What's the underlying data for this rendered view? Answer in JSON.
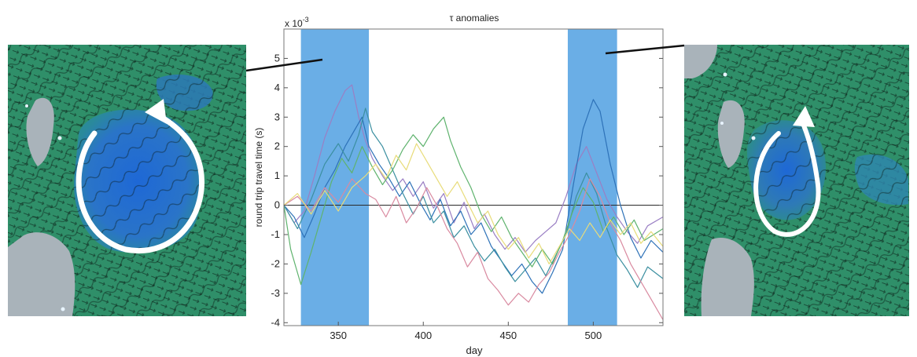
{
  "chart_data": {
    "type": "line",
    "title": "τ anomalies",
    "xlabel": "day",
    "ylabel": "round trip travel time (s)",
    "y_scale_label": "x 10",
    "y_scale_exponent": "-3",
    "xlim": [
      318,
      541
    ],
    "ylim": [
      -4.1,
      6.0
    ],
    "x_ticks": [
      "350",
      "400",
      "450",
      "500"
    ],
    "y_ticks": [
      "5",
      "4",
      "3",
      "2",
      "1",
      "0",
      "-1",
      "-2",
      "-3",
      "-4"
    ],
    "highlight_bands": [
      [
        328,
        368
      ],
      [
        485,
        514
      ]
    ],
    "grid": false,
    "series": [
      {
        "color": "#9a7fc4",
        "points": [
          [
            318,
            0.0
          ],
          [
            324,
            -0.6
          ],
          [
            330,
            -0.2
          ],
          [
            336,
            1.0
          ],
          [
            342,
            2.3
          ],
          [
            348,
            3.2
          ],
          [
            354,
            3.9
          ],
          [
            358,
            4.1
          ],
          [
            362,
            3.0
          ],
          [
            366,
            2.2
          ],
          [
            370,
            1.6
          ],
          [
            376,
            1.0
          ],
          [
            382,
            0.5
          ],
          [
            388,
            0.9
          ],
          [
            394,
            0.3
          ],
          [
            400,
            0.8
          ],
          [
            406,
            -0.1
          ],
          [
            412,
            0.4
          ],
          [
            418,
            -0.6
          ],
          [
            424,
            0.1
          ],
          [
            430,
            -0.8
          ],
          [
            436,
            -0.3
          ],
          [
            442,
            -1.0
          ],
          [
            448,
            -1.5
          ],
          [
            454,
            -1.1
          ],
          [
            460,
            -1.6
          ],
          [
            466,
            -1.2
          ],
          [
            472,
            -0.9
          ],
          [
            478,
            -0.6
          ],
          [
            484,
            0.3
          ],
          [
            490,
            1.4
          ],
          [
            496,
            2.0
          ],
          [
            502,
            1.1
          ],
          [
            508,
            0.2
          ],
          [
            514,
            -0.4
          ],
          [
            520,
            -0.9
          ],
          [
            526,
            -1.3
          ],
          [
            532,
            -0.7
          ],
          [
            541,
            -0.4
          ]
        ]
      },
      {
        "color": "#2e72b8",
        "points": [
          [
            318,
            0.0
          ],
          [
            324,
            -0.4
          ],
          [
            330,
            -1.1
          ],
          [
            336,
            -0.3
          ],
          [
            342,
            0.6
          ],
          [
            348,
            1.2
          ],
          [
            354,
            2.0
          ],
          [
            360,
            2.6
          ],
          [
            364,
            3.0
          ],
          [
            368,
            2.0
          ],
          [
            374,
            1.4
          ],
          [
            380,
            0.9
          ],
          [
            386,
            0.3
          ],
          [
            392,
            0.8
          ],
          [
            398,
            0.1
          ],
          [
            404,
            -0.5
          ],
          [
            410,
            0.2
          ],
          [
            416,
            -0.7
          ],
          [
            422,
            -0.2
          ],
          [
            428,
            -1.0
          ],
          [
            434,
            -0.6
          ],
          [
            440,
            -1.4
          ],
          [
            446,
            -1.9
          ],
          [
            452,
            -2.4
          ],
          [
            458,
            -2.0
          ],
          [
            464,
            -2.6
          ],
          [
            470,
            -3.0
          ],
          [
            476,
            -2.3
          ],
          [
            482,
            -1.5
          ],
          [
            488,
            0.6
          ],
          [
            494,
            2.6
          ],
          [
            500,
            3.6
          ],
          [
            504,
            3.2
          ],
          [
            510,
            1.4
          ],
          [
            516,
            0.0
          ],
          [
            522,
            -1.1
          ],
          [
            528,
            -1.8
          ],
          [
            534,
            -1.2
          ],
          [
            541,
            -1.6
          ]
        ]
      },
      {
        "color": "#3b8fa0",
        "points": [
          [
            318,
            0.0
          ],
          [
            326,
            -0.8
          ],
          [
            334,
            0.2
          ],
          [
            342,
            1.4
          ],
          [
            350,
            2.1
          ],
          [
            356,
            1.5
          ],
          [
            362,
            2.4
          ],
          [
            366,
            3.3
          ],
          [
            370,
            2.5
          ],
          [
            376,
            2.0
          ],
          [
            382,
            1.2
          ],
          [
            388,
            0.4
          ],
          [
            394,
            -0.3
          ],
          [
            400,
            0.3
          ],
          [
            406,
            -0.6
          ],
          [
            412,
            -0.2
          ],
          [
            418,
            -1.1
          ],
          [
            424,
            -0.7
          ],
          [
            430,
            -1.4
          ],
          [
            436,
            -1.9
          ],
          [
            442,
            -1.5
          ],
          [
            448,
            -2.1
          ],
          [
            454,
            -2.6
          ],
          [
            460,
            -2.2
          ],
          [
            466,
            -1.8
          ],
          [
            472,
            -2.4
          ],
          [
            478,
            -1.7
          ],
          [
            484,
            -1.0
          ],
          [
            490,
            0.3
          ],
          [
            496,
            1.1
          ],
          [
            502,
            0.4
          ],
          [
            508,
            -0.8
          ],
          [
            514,
            -1.7
          ],
          [
            520,
            -2.2
          ],
          [
            526,
            -2.8
          ],
          [
            532,
            -2.1
          ],
          [
            541,
            -2.5
          ]
        ]
      },
      {
        "color": "#5fb36e",
        "points": [
          [
            318,
            0.0
          ],
          [
            322,
            -1.5
          ],
          [
            328,
            -2.7
          ],
          [
            334,
            -1.6
          ],
          [
            340,
            -0.4
          ],
          [
            346,
            0.8
          ],
          [
            352,
            1.6
          ],
          [
            358,
            1.1
          ],
          [
            364,
            2.0
          ],
          [
            370,
            1.3
          ],
          [
            376,
            0.7
          ],
          [
            382,
            1.2
          ],
          [
            388,
            1.9
          ],
          [
            394,
            2.4
          ],
          [
            400,
            2.0
          ],
          [
            406,
            2.6
          ],
          [
            412,
            3.0
          ],
          [
            416,
            2.2
          ],
          [
            422,
            1.3
          ],
          [
            428,
            0.6
          ],
          [
            434,
            -0.3
          ],
          [
            440,
            -0.9
          ],
          [
            446,
            -0.4
          ],
          [
            452,
            -1.1
          ],
          [
            458,
            -1.6
          ],
          [
            464,
            -2.1
          ],
          [
            470,
            -1.5
          ],
          [
            476,
            -2.0
          ],
          [
            482,
            -1.2
          ],
          [
            488,
            -0.2
          ],
          [
            494,
            0.6
          ],
          [
            500,
            0.1
          ],
          [
            506,
            -0.9
          ],
          [
            512,
            -0.4
          ],
          [
            518,
            -1.0
          ],
          [
            524,
            -0.5
          ],
          [
            530,
            -1.2
          ],
          [
            541,
            -0.8
          ]
        ]
      },
      {
        "color": "#d98aa0",
        "points": [
          [
            318,
            0.0
          ],
          [
            326,
            0.3
          ],
          [
            334,
            -0.2
          ],
          [
            342,
            0.6
          ],
          [
            350,
            0.1
          ],
          [
            358,
            0.9
          ],
          [
            366,
            0.4
          ],
          [
            372,
            0.2
          ],
          [
            378,
            -0.4
          ],
          [
            384,
            0.3
          ],
          [
            390,
            -0.6
          ],
          [
            396,
            -0.1
          ],
          [
            402,
            0.6
          ],
          [
            408,
            0.0
          ],
          [
            414,
            -0.8
          ],
          [
            420,
            -1.3
          ],
          [
            426,
            -2.1
          ],
          [
            432,
            -1.6
          ],
          [
            438,
            -2.5
          ],
          [
            444,
            -2.9
          ],
          [
            450,
            -3.4
          ],
          [
            456,
            -3.0
          ],
          [
            462,
            -3.3
          ],
          [
            468,
            -2.7
          ],
          [
            474,
            -2.3
          ],
          [
            480,
            -1.6
          ],
          [
            486,
            -1.0
          ],
          [
            492,
            -0.2
          ],
          [
            498,
            0.9
          ],
          [
            504,
            0.3
          ],
          [
            510,
            -0.6
          ],
          [
            516,
            -1.2
          ],
          [
            522,
            -2.0
          ],
          [
            528,
            -2.6
          ],
          [
            534,
            -3.2
          ],
          [
            541,
            -3.9
          ]
        ]
      },
      {
        "color": "#e8dc7a",
        "points": [
          [
            318,
            0.0
          ],
          [
            326,
            0.4
          ],
          [
            334,
            -0.3
          ],
          [
            342,
            0.5
          ],
          [
            350,
            -0.2
          ],
          [
            358,
            0.6
          ],
          [
            366,
            1.0
          ],
          [
            372,
            1.4
          ],
          [
            378,
            0.9
          ],
          [
            384,
            1.7
          ],
          [
            390,
            1.2
          ],
          [
            396,
            2.1
          ],
          [
            402,
            1.5
          ],
          [
            408,
            0.9
          ],
          [
            414,
            0.3
          ],
          [
            420,
            0.8
          ],
          [
            426,
            0.1
          ],
          [
            432,
            -0.6
          ],
          [
            438,
            -0.2
          ],
          [
            444,
            -1.0
          ],
          [
            450,
            -1.5
          ],
          [
            456,
            -1.1
          ],
          [
            462,
            -1.8
          ],
          [
            468,
            -1.3
          ],
          [
            474,
            -2.0
          ],
          [
            480,
            -1.4
          ],
          [
            486,
            -0.8
          ],
          [
            492,
            -1.2
          ],
          [
            498,
            -0.6
          ],
          [
            504,
            -1.1
          ],
          [
            510,
            -0.5
          ],
          [
            516,
            -1.0
          ],
          [
            522,
            -0.6
          ],
          [
            528,
            -1.3
          ],
          [
            534,
            -0.9
          ],
          [
            541,
            -1.4
          ]
        ]
      }
    ]
  },
  "left_map": {
    "background": "#2f8f69",
    "eddy_color": "#1f6fd0",
    "land_color": "#a9b3ba"
  },
  "right_map": {
    "background": "#2f8f69",
    "eddy_color": "#1f6fd0",
    "land_color": "#a9b3ba"
  },
  "band_color": "#6aaee6"
}
